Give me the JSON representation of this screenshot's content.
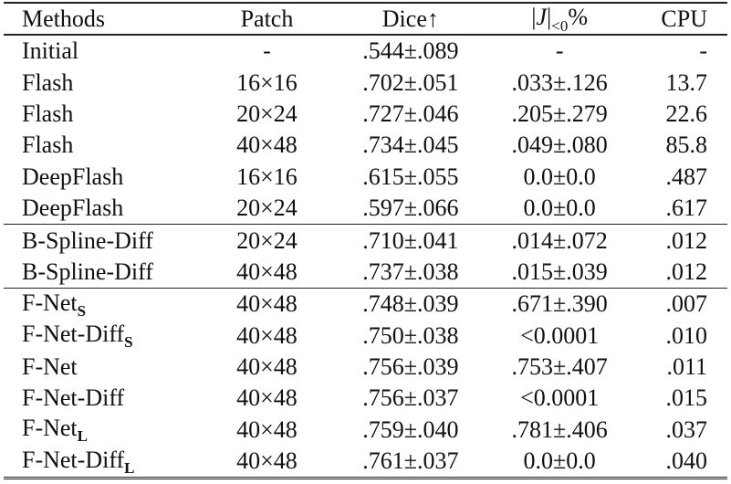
{
  "table": {
    "headers": {
      "methods": "Methods",
      "patch": "Patch",
      "dice": "Dice↑",
      "j_bar_left": "|",
      "j_letter": "J",
      "j_bar_right": "|",
      "j_sub": "<0",
      "j_pct": "%",
      "cpu": "CPU"
    },
    "rows": [
      {
        "method": "Initial",
        "sub": "",
        "patch": "-",
        "dice": ".544±.089",
        "j": "-",
        "cpu": "-"
      },
      {
        "method": "Flash",
        "sub": "",
        "patch": "16×16",
        "dice": ".702±.051",
        "j": ".033±.126",
        "cpu": "13.7"
      },
      {
        "method": "Flash",
        "sub": "",
        "patch": "20×24",
        "dice": ".727±.046",
        "j": ".205±.279",
        "cpu": "22.6"
      },
      {
        "method": "Flash",
        "sub": "",
        "patch": "40×48",
        "dice": ".734±.045",
        "j": ".049±.080",
        "cpu": "85.8"
      },
      {
        "method": "DeepFlash",
        "sub": "",
        "patch": "16×16",
        "dice": ".615±.055",
        "j": "0.0±0.0",
        "cpu": ".487"
      },
      {
        "method": "DeepFlash",
        "sub": "",
        "patch": "20×24",
        "dice": ".597±.066",
        "j": "0.0±0.0",
        "cpu": ".617"
      },
      {
        "method": "B-Spline-Diff",
        "sub": "",
        "patch": "20×24",
        "dice": ".710±.041",
        "j": ".014±.072",
        "cpu": ".012"
      },
      {
        "method": "B-Spline-Diff",
        "sub": "",
        "patch": "40×48",
        "dice": ".737±.038",
        "j": ".015±.039",
        "cpu": ".012"
      },
      {
        "method": "F-Net",
        "sub": "S",
        "patch": "40×48",
        "dice": ".748±.039",
        "j": ".671±.390",
        "cpu": ".007"
      },
      {
        "method": "F-Net-Diff",
        "sub": "S",
        "patch": "40×48",
        "dice": ".750±.038",
        "j": "<0.0001",
        "cpu": ".010"
      },
      {
        "method": "F-Net",
        "sub": "",
        "patch": "40×48",
        "dice": ".756±.039",
        "j": ".753±.407",
        "cpu": ".011"
      },
      {
        "method": "F-Net-Diff",
        "sub": "",
        "patch": "40×48",
        "dice": ".756±.037",
        "j": "<0.0001",
        "cpu": ".015"
      },
      {
        "method": "F-Net",
        "sub": "L",
        "patch": "40×48",
        "dice": ".759±.040",
        "j": ".781±.406",
        "cpu": ".037"
      },
      {
        "method": "F-Net-Diff",
        "sub": "L",
        "patch": "40×48",
        "dice": ".761±.037",
        "j": "0.0±0.0",
        "cpu": ".040"
      }
    ],
    "bold_cells": [
      {
        "row": 8,
        "column": "cpu",
        "value": ".007"
      },
      {
        "row": 13,
        "column": "dice",
        "value": ".761±.037"
      }
    ],
    "section_breaks_before_rows": [
      6,
      8
    ]
  }
}
